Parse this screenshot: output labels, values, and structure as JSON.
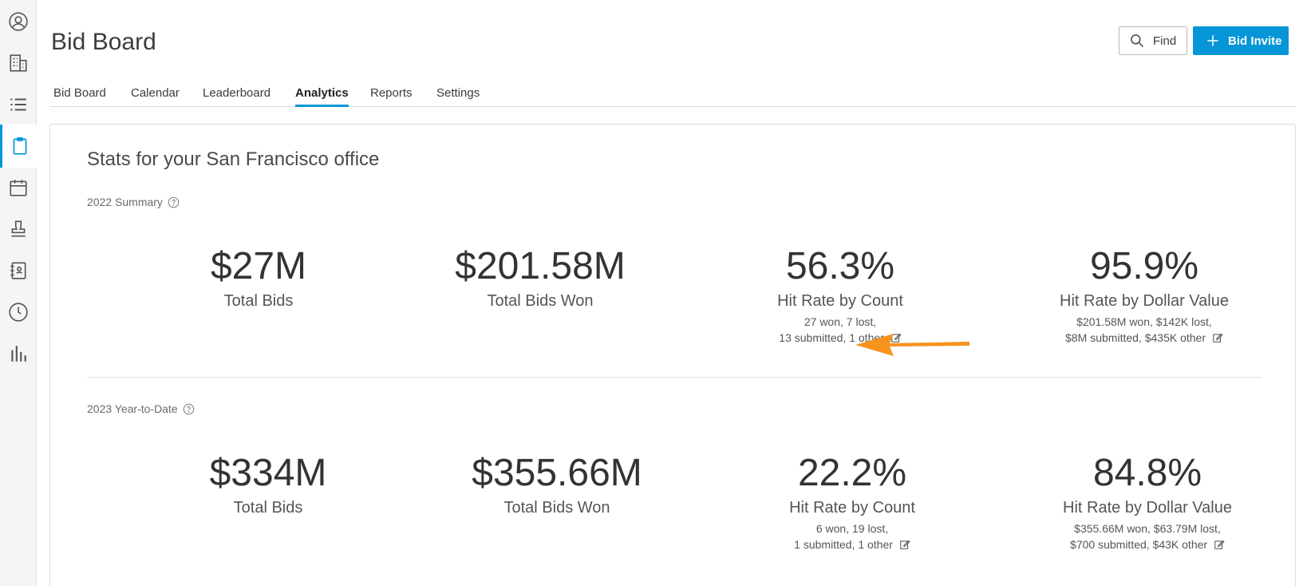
{
  "header": {
    "title": "Bid Board",
    "find_label": "Find",
    "invite_label": "Bid Invite"
  },
  "tabs": [
    {
      "label": "Bid Board"
    },
    {
      "label": "Calendar"
    },
    {
      "label": "Leaderboard"
    },
    {
      "label": "Analytics",
      "active": true
    },
    {
      "label": "Reports"
    },
    {
      "label": "Settings"
    }
  ],
  "rail": {
    "icons": [
      "user-circle-icon",
      "building-icon",
      "list-icon",
      "clipboard-icon",
      "calendar-icon",
      "stamp-icon",
      "address-book-icon",
      "clock-icon",
      "bar-chart-icon"
    ],
    "active": "clipboard-icon"
  },
  "main": {
    "title": "Stats for your San Francisco office",
    "sections": [
      {
        "label": "2022 Summary",
        "stats": [
          {
            "value": "$27M",
            "label": "Total Bids"
          },
          {
            "value": "$201.58M",
            "label": "Total Bids Won"
          },
          {
            "value": "56.3%",
            "label": "Hit Rate by Count",
            "detail1": "27 won, 7 lost,",
            "detail2": "13 submitted, 1 other"
          },
          {
            "value": "95.9%",
            "label": "Hit Rate by Dollar Value",
            "detail1": "$201.58M won, $142K lost,",
            "detail2": "$8M submitted, $435K other"
          }
        ]
      },
      {
        "label": "2023 Year-to-Date",
        "stats": [
          {
            "value": "$334M",
            "label": "Total Bids"
          },
          {
            "value": "$355.66M",
            "label": "Total Bids Won"
          },
          {
            "value": "22.2%",
            "label": "Hit Rate by Count",
            "detail1": "6 won, 19 lost,",
            "detail2": "1 submitted, 1 other"
          },
          {
            "value": "84.8%",
            "label": "Hit Rate by Dollar Value",
            "detail1": "$355.66M won, $63.79M lost,",
            "detail2": "$700 submitted, $43K other"
          }
        ]
      }
    ]
  },
  "colors": {
    "accent": "#0696d7",
    "annotation_arrow": "#f7931e"
  }
}
